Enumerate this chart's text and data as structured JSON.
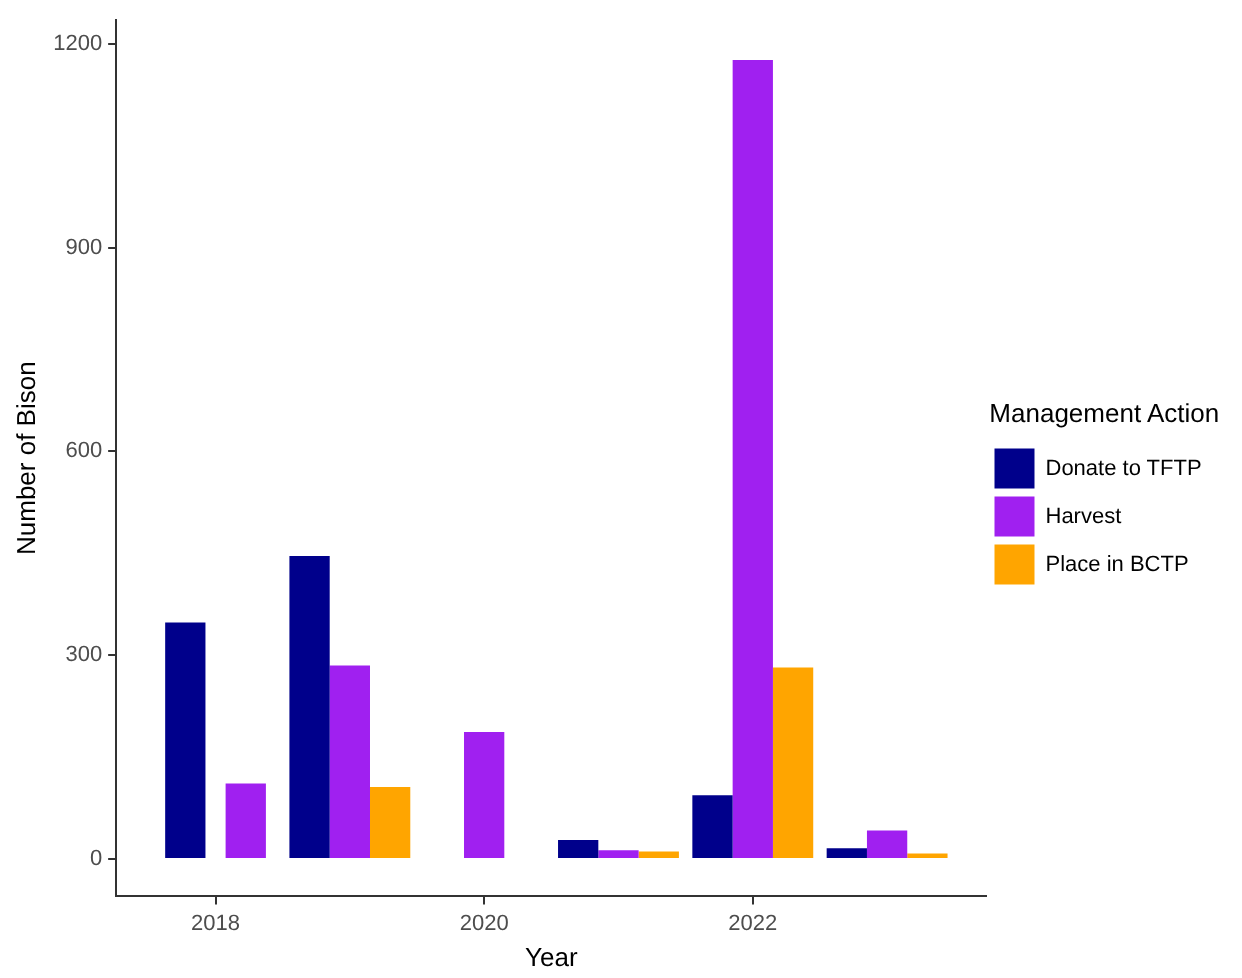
{
  "chart_data": {
    "type": "bar",
    "xlabel": "Year",
    "ylabel": "Number of Bison",
    "legend_title": "Management Action",
    "legend": "right",
    "grid": false,
    "x": [
      2018,
      2019,
      2020,
      2021,
      2022,
      2023
    ],
    "xlim": [
      2017.26,
      2023.74
    ],
    "xticks": [
      2018,
      2020,
      2022
    ],
    "ylim": [
      -55,
      1235
    ],
    "yticks": [
      0,
      300,
      600,
      900,
      1200
    ],
    "series": [
      {
        "name": "Donate to TFTP",
        "color": "#00008b",
        "values": [
          348,
          446,
          null,
          28,
          94,
          16
        ]
      },
      {
        "name": "Harvest",
        "color": "#a020f0",
        "values": [
          111,
          285,
          187,
          13,
          1176,
          42
        ]
      },
      {
        "name": "Place in BCTP",
        "color": "#ffa500",
        "values": [
          null,
          106,
          null,
          11,
          282,
          8
        ]
      }
    ]
  }
}
